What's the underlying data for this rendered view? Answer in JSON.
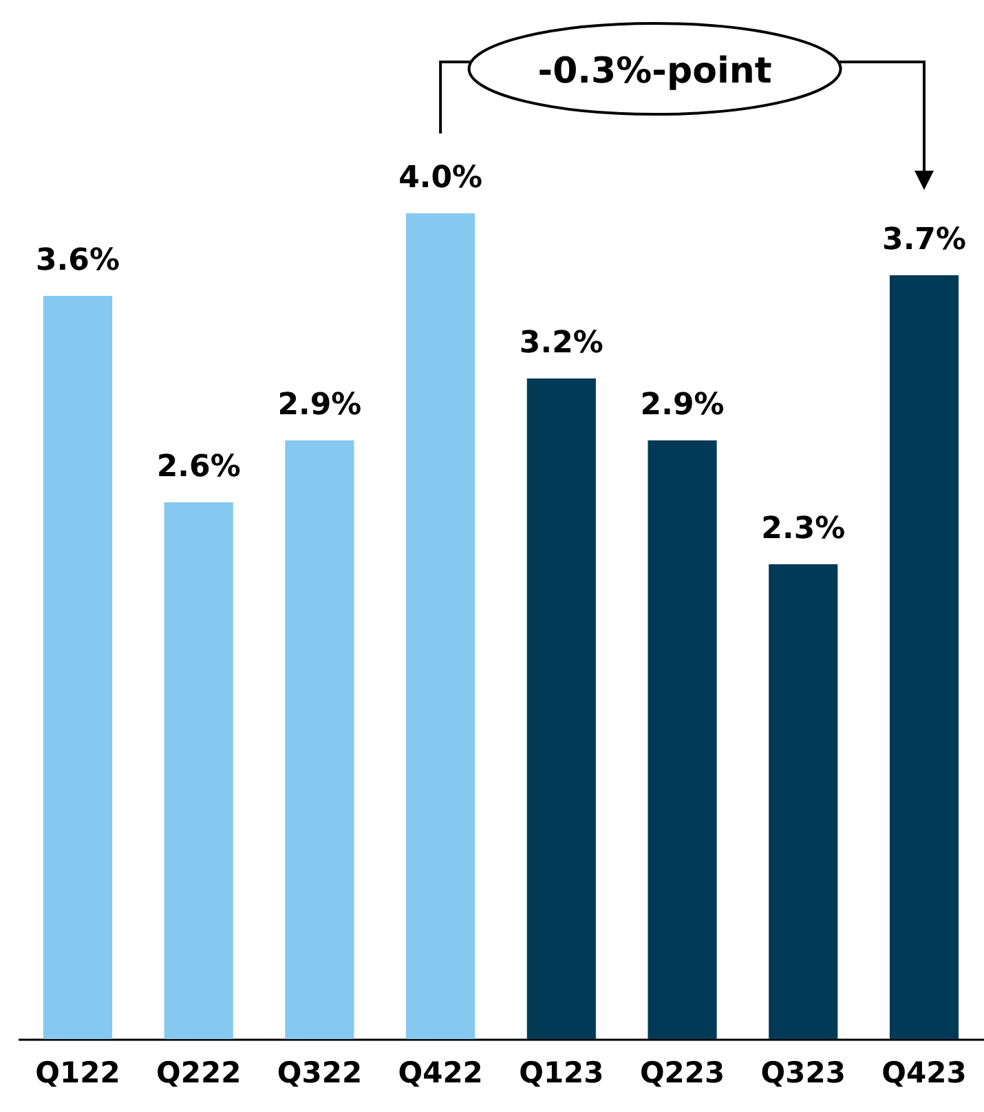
{
  "chart_data": {
    "type": "bar",
    "categories": [
      "Q122",
      "Q222",
      "Q322",
      "Q422",
      "Q123",
      "Q223",
      "Q323",
      "Q423"
    ],
    "values": [
      3.6,
      2.6,
      2.9,
      4.0,
      3.2,
      2.9,
      2.3,
      3.7
    ],
    "colors": [
      "#85c8f0",
      "#85c8f0",
      "#85c8f0",
      "#85c8f0",
      "#003a57",
      "#003a57",
      "#003a57",
      "#003a57"
    ],
    "value_labels": [
      "3.6%",
      "2.6%",
      "2.9%",
      "4.0%",
      "3.2%",
      "2.9%",
      "2.3%",
      "3.7%"
    ],
    "ylim": [
      0,
      5
    ],
    "annotations": [
      "-0.3%-point"
    ]
  }
}
